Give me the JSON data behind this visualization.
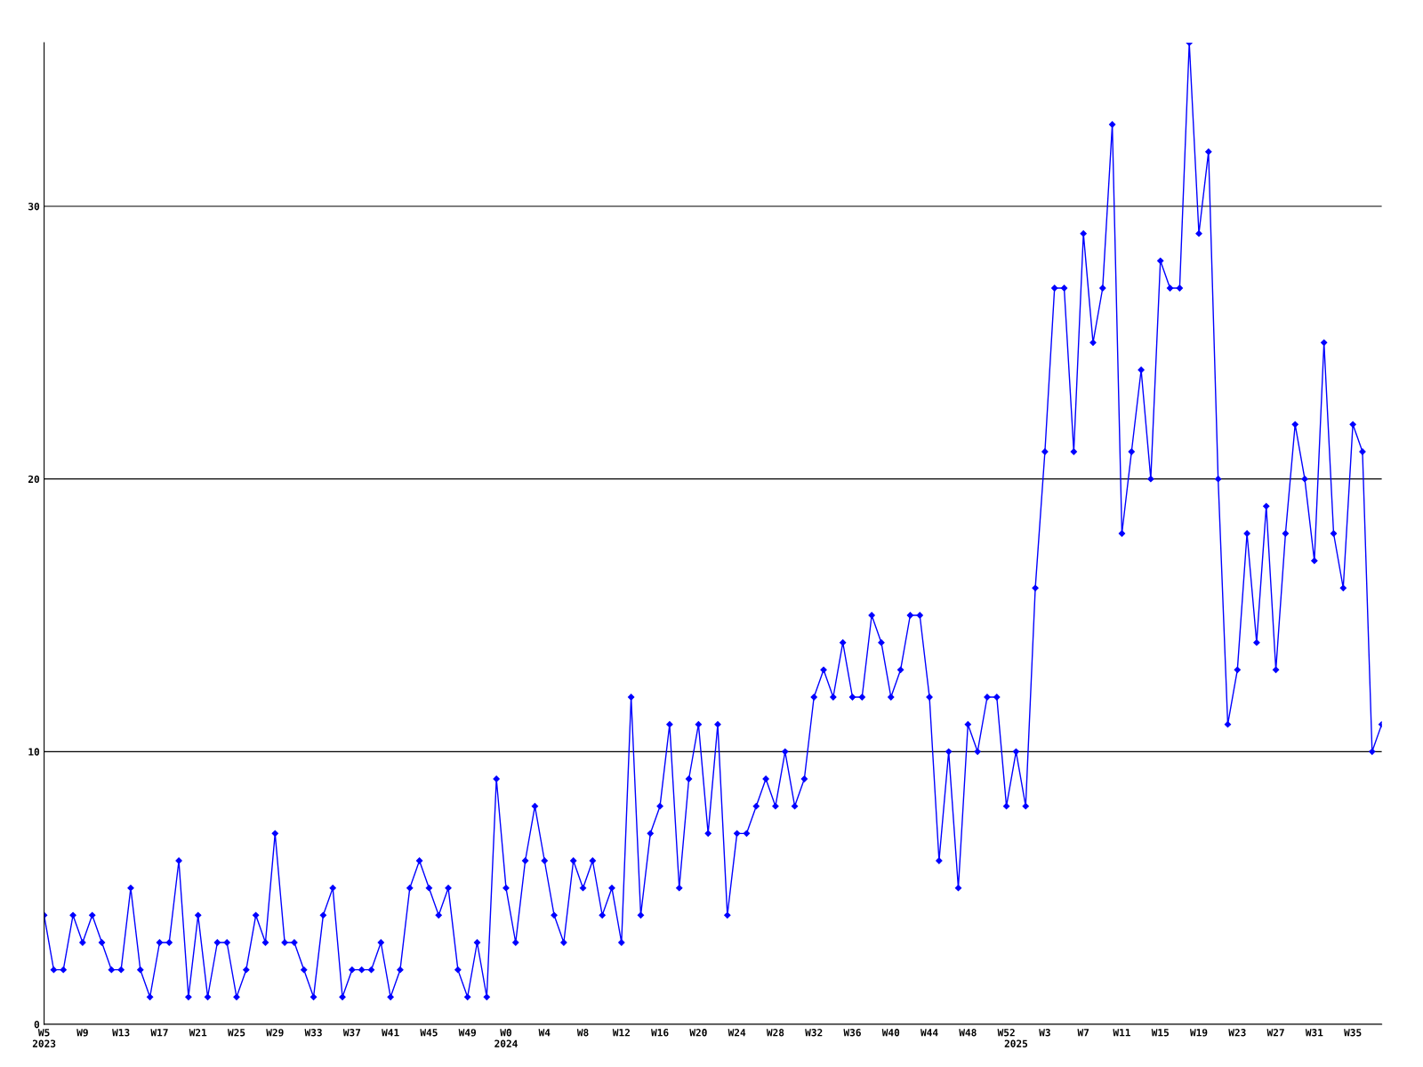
{
  "chart_data": {
    "type": "line",
    "categories": [
      "W5\n2023",
      null,
      null,
      null,
      "W9",
      null,
      null,
      null,
      "W13",
      null,
      null,
      null,
      "W17",
      null,
      null,
      null,
      "W21",
      null,
      null,
      null,
      "W25",
      null,
      null,
      null,
      "W29",
      null,
      null,
      null,
      "W33",
      null,
      null,
      null,
      "W37",
      null,
      null,
      null,
      "W41",
      null,
      null,
      null,
      "W45",
      null,
      null,
      null,
      "W49",
      null,
      null,
      null,
      "W0\n2024",
      null,
      null,
      null,
      "W4",
      null,
      null,
      null,
      "W8",
      null,
      null,
      null,
      "W12",
      null,
      null,
      null,
      "W16",
      null,
      null,
      null,
      "W20",
      null,
      null,
      null,
      "W24",
      null,
      null,
      null,
      "W28",
      null,
      null,
      null,
      "W32",
      null,
      null,
      null,
      "W36",
      null,
      null,
      null,
      "W40",
      null,
      null,
      null,
      "W44",
      null,
      null,
      null,
      "W48",
      null,
      null,
      null,
      "W52",
      "\n2025",
      null,
      null,
      "W3",
      null,
      null,
      null,
      "W7",
      null,
      null,
      null,
      "W11",
      null,
      null,
      null,
      "W15",
      null,
      null,
      null,
      "W19",
      null,
      null,
      null,
      "W23",
      null,
      null,
      null,
      "W27",
      null,
      null,
      null,
      "W31",
      null,
      null,
      null,
      "W35",
      null,
      null,
      null
    ],
    "series": [
      {
        "color": "#0000ff",
        "values": [
          4,
          2,
          2,
          4,
          3,
          4,
          3,
          2,
          2,
          5,
          2,
          1,
          3,
          3,
          6,
          1,
          4,
          1,
          3,
          3,
          1,
          2,
          4,
          3,
          7,
          3,
          3,
          2,
          1,
          4,
          5,
          1,
          2,
          2,
          2,
          3,
          1,
          2,
          5,
          6,
          5,
          4,
          5,
          2,
          1,
          3,
          1,
          9,
          5,
          3,
          6,
          8,
          6,
          4,
          3,
          6,
          5,
          6,
          4,
          5,
          3,
          12,
          4,
          7,
          8,
          11,
          5,
          9,
          11,
          7,
          11,
          4,
          7,
          7,
          8,
          9,
          8,
          10,
          8,
          9,
          12,
          13,
          12,
          14,
          12,
          12,
          15,
          14,
          12,
          13,
          15,
          15,
          12,
          6,
          10,
          5,
          11,
          10,
          12,
          12,
          8,
          10,
          8,
          16,
          21,
          27,
          27,
          21,
          29,
          25,
          27,
          33,
          18,
          21,
          24,
          20,
          28,
          27,
          27,
          36,
          29,
          32,
          20,
          11,
          13,
          18,
          14,
          19,
          13,
          18,
          22,
          20,
          17,
          25,
          18,
          16,
          22,
          21,
          10,
          11
        ]
      }
    ],
    "ylim": [
      0,
      36
    ],
    "yticks": [
      0,
      10,
      20,
      30
    ],
    "grid": "y",
    "marker": "diamond",
    "line_style": "solid",
    "legend": false
  }
}
